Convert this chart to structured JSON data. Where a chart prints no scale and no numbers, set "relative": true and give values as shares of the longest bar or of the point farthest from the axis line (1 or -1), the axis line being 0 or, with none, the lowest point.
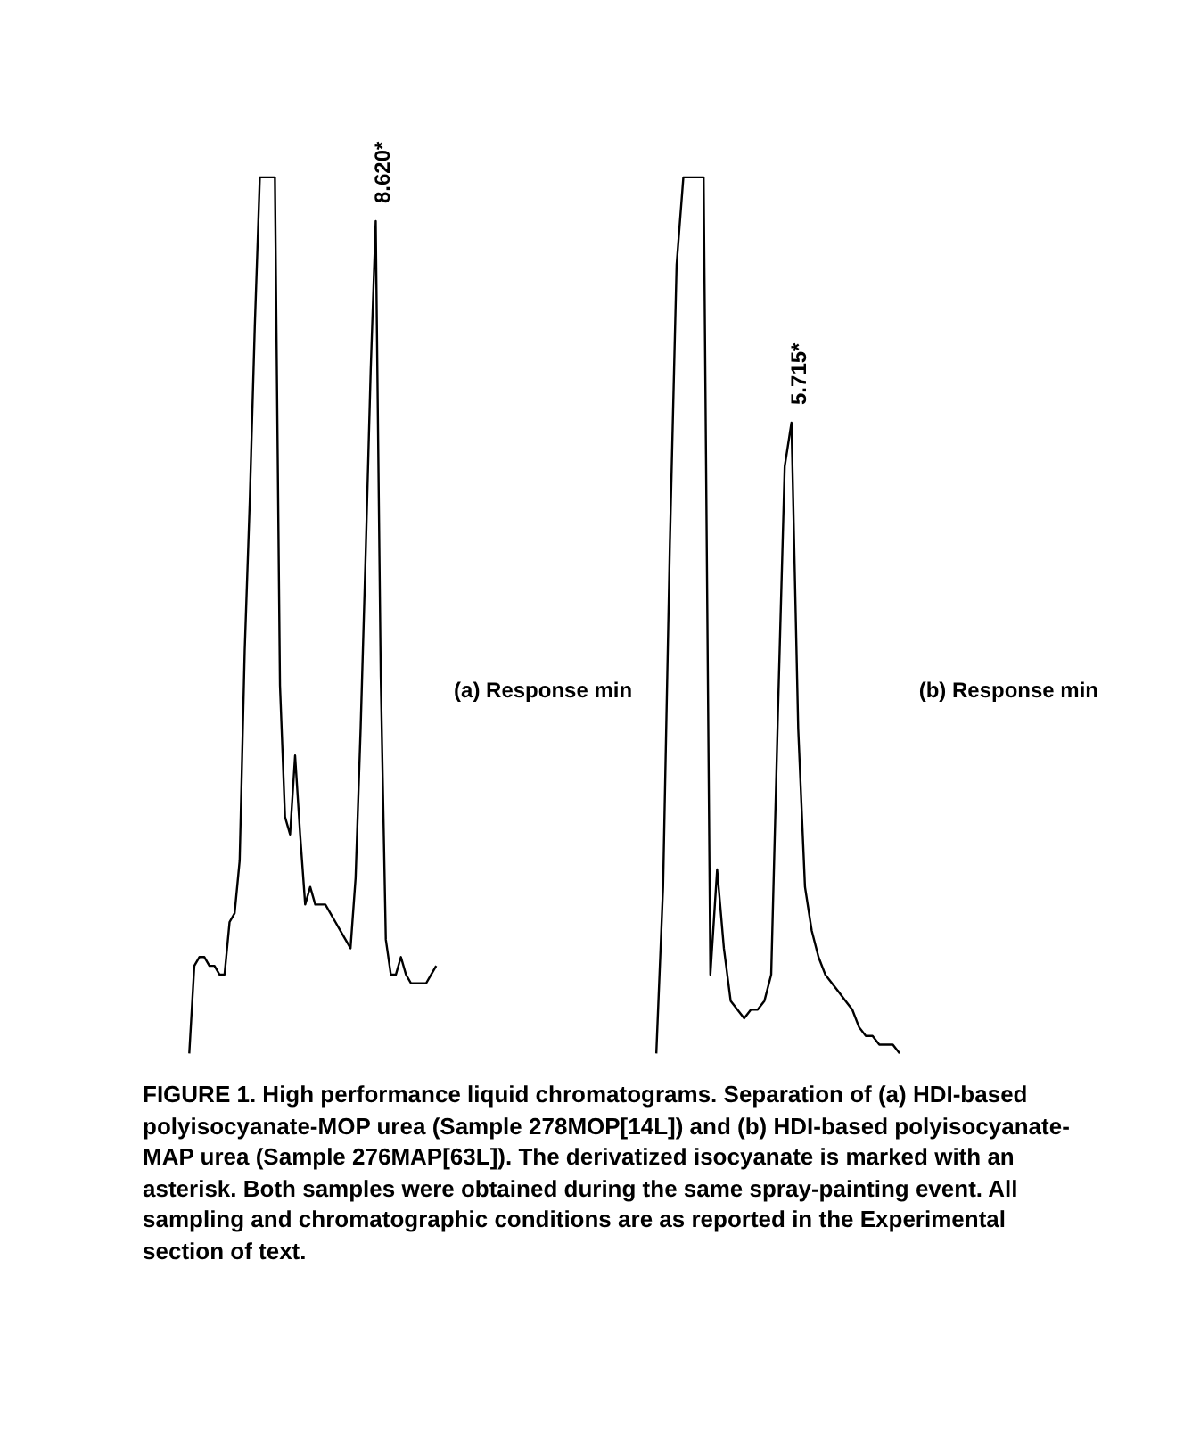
{
  "chart_data": [
    {
      "type": "line",
      "relative": true,
      "categories": [
        null,
        null,
        null,
        null,
        null,
        null,
        null,
        null,
        null,
        null,
        null,
        null,
        null,
        null,
        null,
        null,
        null,
        null,
        null,
        null,
        null,
        null,
        null,
        null,
        null,
        null,
        null,
        null,
        null,
        null,
        null,
        null,
        null,
        null,
        null,
        null,
        null,
        null,
        null,
        null,
        null,
        null,
        null,
        null,
        null,
        null,
        null,
        null,
        null,
        null
      ],
      "series": [
        {
          "color": "#000000",
          "values": [
            0,
            0.1,
            0.11,
            0.11,
            0.1,
            0.1,
            0.09,
            0.09,
            0.15,
            0.16,
            0.22,
            0.46,
            0.63,
            0.83,
            1,
            1,
            1,
            1,
            0.42,
            0.27,
            0.25,
            0.34,
            0.25,
            0.17,
            0.19,
            0.17,
            0.17,
            0.17,
            0.16,
            0.15,
            0.14,
            0.13,
            0.12,
            0.2,
            0.37,
            0.57,
            0.78,
            0.95,
            0.43,
            0.13,
            0.09,
            0.09,
            0.11,
            0.09,
            0.08,
            0.08,
            0.08,
            0.08,
            0.09,
            0.1
          ]
        }
      ],
      "annotations": [
        {
          "text": "8.620*",
          "y": 0.95
        },
        "(a) Response min",
        "FIGURE 1. High performance liquid chromatograms. Separation of (a) HDI-based polyisocyanate-MOP urea (Sample 278MOP[14L]) and (b) HDI-based polyisocyanate-MAP urea (Sample 276MAP[63L]). The derivatized isocyanate is marked with an asterisk. Both samples were obtained during the same spray-painting event. All sampling and chromatographic conditions are as reported in the Experimental section of text."
      ]
    },
    {
      "type": "line",
      "relative": true,
      "categories": [
        null,
        null,
        null,
        null,
        null,
        null,
        null,
        null,
        null,
        null,
        null,
        null,
        null,
        null,
        null,
        null,
        null,
        null,
        null,
        null,
        null,
        null,
        null,
        null,
        null,
        null,
        null,
        null,
        null,
        null,
        null,
        null,
        null,
        null,
        null,
        null,
        null
      ],
      "series": [
        {
          "color": "#000000",
          "values": [
            0,
            0.19,
            0.58,
            0.9,
            1,
            1,
            1,
            1,
            0.09,
            0.21,
            0.12,
            0.06,
            0.05,
            0.04,
            0.05,
            0.05,
            0.06,
            0.09,
            0.39,
            0.67,
            0.72,
            0.37,
            0.19,
            0.14,
            0.11,
            0.09,
            0.08,
            0.07,
            0.06,
            0.05,
            0.03,
            0.02,
            0.02,
            0.01,
            0.01,
            0.01,
            0
          ]
        }
      ],
      "annotations": [
        {
          "text": "5.715*",
          "y": 0.72
        },
        "(b) Response min"
      ]
    }
  ]
}
